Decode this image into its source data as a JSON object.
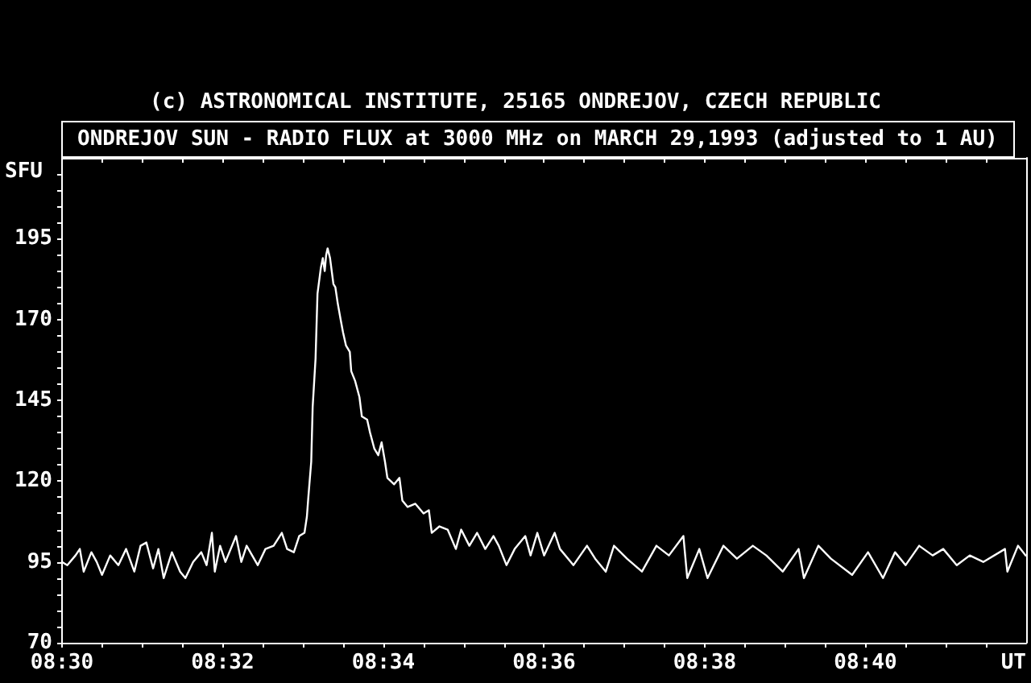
{
  "chart_data": {
    "type": "line",
    "title": "(c) ASTRONOMICAL INSTITUTE, 25165 ONDREJOV, CZECH REPUBLIC",
    "subtitle": "ONDREJOV SUN - RADIO FLUX at 3000 MHz on MARCH 29,1993 (adjusted to 1 AU)",
    "xlabel": "UT",
    "ylabel": "SFU",
    "x": [
      8.5,
      8.5011,
      8.5028,
      8.5037,
      8.5045,
      8.5061,
      8.5072,
      8.5083,
      8.51,
      8.5117,
      8.5133,
      8.515,
      8.5163,
      8.5175,
      8.5189,
      8.52,
      8.5211,
      8.5228,
      8.5245,
      8.5256,
      8.5272,
      8.5289,
      8.53,
      8.5311,
      8.5317,
      8.5328,
      8.5339,
      8.5361,
      8.5372,
      8.5383,
      8.5406,
      8.5422,
      8.5439,
      8.5456,
      8.5467,
      8.5481,
      8.5492,
      8.5503,
      8.5508,
      8.5511,
      8.5517,
      8.552,
      8.5526,
      8.553,
      8.5537,
      8.5541,
      8.5545,
      8.5548,
      8.5551,
      8.5556,
      8.5563,
      8.5567,
      8.5572,
      8.5578,
      8.5583,
      8.5589,
      8.5597,
      8.56,
      8.5608,
      8.5617,
      8.5622,
      8.5633,
      8.5639,
      8.5648,
      8.5656,
      8.5663,
      8.567,
      8.5675,
      8.5689,
      8.57,
      8.5706,
      8.5717,
      8.5733,
      8.575,
      8.5761,
      8.5767,
      8.5783,
      8.58,
      8.5817,
      8.5828,
      8.5845,
      8.5861,
      8.5878,
      8.5895,
      8.5906,
      8.5922,
      8.5939,
      8.5961,
      8.5972,
      8.5986,
      8.6,
      8.6022,
      8.6033,
      8.6061,
      8.6089,
      8.6106,
      8.6128,
      8.6145,
      8.6172,
      8.6203,
      8.6233,
      8.6259,
      8.6289,
      8.6297,
      8.6322,
      8.6339,
      8.6372,
      8.64,
      8.6433,
      8.6461,
      8.6495,
      8.6528,
      8.6539,
      8.6569,
      8.6595,
      8.6639,
      8.6672,
      8.6703,
      8.6728,
      8.675,
      8.6778,
      8.6806,
      8.6828,
      8.6856,
      8.6883,
      8.6911,
      8.6956,
      8.6961,
      8.6983,
      8.6999
    ],
    "series": [
      {
        "color": "#ffffff",
        "values": [
          95,
          94,
          97,
          99,
          92,
          98,
          95,
          91,
          97,
          94,
          99,
          92,
          100,
          101,
          93,
          99,
          90,
          98,
          92,
          90,
          95,
          98,
          94,
          104,
          92,
          100,
          95,
          103,
          95,
          100,
          94,
          99,
          100,
          104,
          99,
          98,
          103,
          104,
          109,
          115,
          126,
          143,
          158,
          178,
          186,
          189,
          185,
          190,
          192,
          189,
          181,
          180,
          175,
          170,
          166,
          162,
          160,
          154,
          151,
          146,
          140,
          139,
          135,
          130,
          128,
          132,
          126,
          121,
          119,
          121,
          114,
          112,
          113,
          110,
          111,
          104,
          106,
          105,
          99,
          105,
          100,
          104,
          99,
          103,
          100,
          94,
          99,
          103,
          97,
          104,
          97,
          104,
          99,
          94,
          100,
          96,
          92,
          100,
          96,
          92,
          100,
          97,
          103,
          90,
          99,
          90,
          100,
          96,
          100,
          97,
          92,
          99,
          90,
          100,
          96,
          91,
          98,
          90,
          98,
          94,
          100,
          97,
          99,
          94,
          97,
          95,
          99,
          92,
          100,
          97
        ]
      }
    ],
    "xlim": [
      8.5,
      8.7
    ],
    "xticks": [
      {
        "value": 8.5,
        "label": "08:30"
      },
      {
        "value": 8.508333,
        "label": null
      },
      {
        "value": 8.516667,
        "label": null
      },
      {
        "value": 8.525,
        "label": null
      },
      {
        "value": 8.533333,
        "label": "08:32"
      },
      {
        "value": 8.541667,
        "label": null
      },
      {
        "value": 8.55,
        "label": null
      },
      {
        "value": 8.558333,
        "label": null
      },
      {
        "value": 8.566667,
        "label": "08:34"
      },
      {
        "value": 8.575,
        "label": null
      },
      {
        "value": 8.583333,
        "label": null
      },
      {
        "value": 8.591667,
        "label": null
      },
      {
        "value": 8.6,
        "label": "08:36"
      },
      {
        "value": 8.608333,
        "label": null
      },
      {
        "value": 8.616667,
        "label": null
      },
      {
        "value": 8.625,
        "label": null
      },
      {
        "value": 8.633333,
        "label": "08:38"
      },
      {
        "value": 8.641667,
        "label": null
      },
      {
        "value": 8.65,
        "label": null
      },
      {
        "value": 8.658333,
        "label": null
      },
      {
        "value": 8.666667,
        "label": "08:40"
      },
      {
        "value": 8.675,
        "label": null
      },
      {
        "value": 8.683333,
        "label": null
      },
      {
        "value": 8.691667,
        "label": null
      }
    ],
    "ylim": [
      70,
      220
    ],
    "yticks": [
      70,
      {
        "value": 75,
        "label": null
      },
      {
        "value": 80,
        "label": null
      },
      {
        "value": 85,
        "label": null
      },
      {
        "value": 90,
        "label": null
      },
      95,
      {
        "value": 100,
        "label": null
      },
      {
        "value": 105,
        "label": null
      },
      {
        "value": 110,
        "label": null
      },
      {
        "value": 115,
        "label": null
      },
      120,
      {
        "value": 125,
        "label": null
      },
      {
        "value": 130,
        "label": null
      },
      {
        "value": 135,
        "label": null
      },
      {
        "value": 140,
        "label": null
      },
      145,
      {
        "value": 150,
        "label": null
      },
      {
        "value": 155,
        "label": null
      },
      {
        "value": 160,
        "label": null
      },
      {
        "value": 165,
        "label": null
      },
      170,
      {
        "value": 175,
        "label": null
      },
      {
        "value": 180,
        "label": null
      },
      {
        "value": 185,
        "label": null
      },
      {
        "value": 190,
        "label": null
      },
      195,
      {
        "value": 200,
        "label": null
      },
      {
        "value": 205,
        "label": null
      },
      {
        "value": 210,
        "label": null
      },
      {
        "value": 215,
        "label": null
      }
    ],
    "grid": false
  }
}
